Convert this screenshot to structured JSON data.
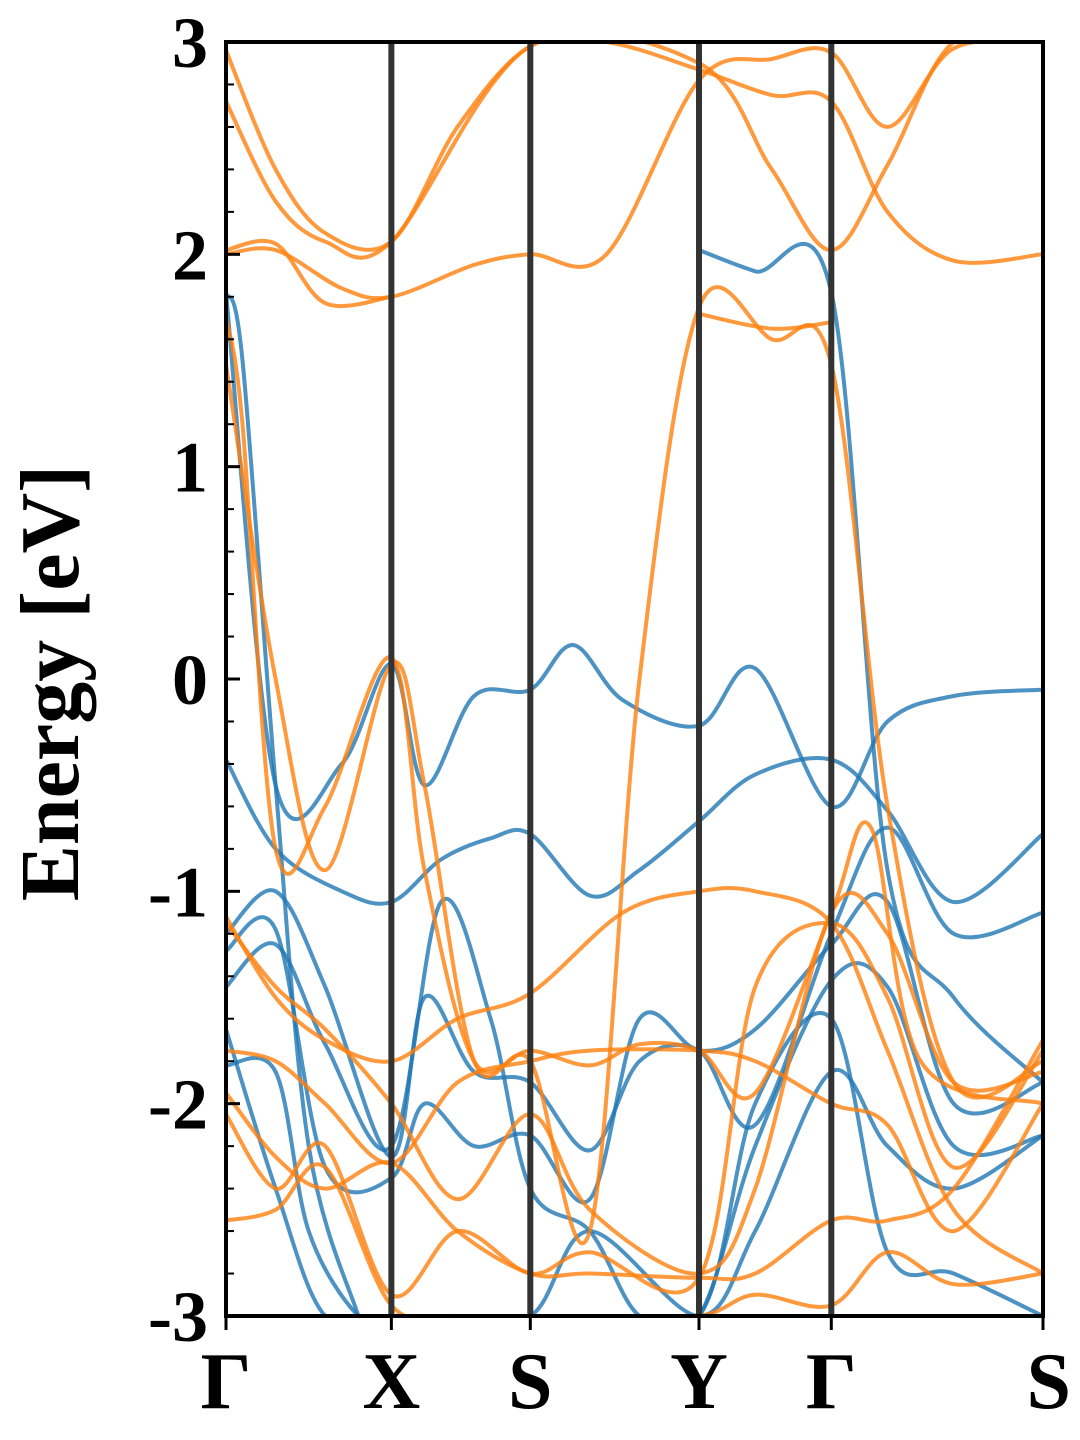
{
  "chart_data": {
    "type": "line",
    "title": "",
    "ylabel": "Energy [eV]",
    "xlabel": "",
    "ylim": [
      -3,
      3
    ],
    "yticks": [
      "-3",
      "-2",
      "-1",
      "0",
      "1",
      "2",
      "3"
    ],
    "kpath": {
      "labels": [
        "Γ",
        "X",
        "S",
        "Y",
        "Γ",
        "S"
      ],
      "positions": [
        0,
        1.0,
        1.84,
        2.86,
        3.66,
        4.94
      ]
    },
    "colors": {
      "spin_up": "#1f77b4",
      "spin_down": "#ff7f0e",
      "vline": "#333333"
    },
    "grid": false,
    "series": [
      {
        "spin": "up",
        "x": [
          0,
          0.3,
          0.7,
          1.0,
          1.2,
          1.5,
          1.84,
          2.1,
          2.4,
          2.86,
          3.2,
          3.66,
          4.0,
          4.4,
          4.94
        ],
        "y": [
          1.82,
          -0.5,
          -0.4,
          0.07,
          -0.5,
          -0.08,
          -0.05,
          0.16,
          -0.1,
          -0.22,
          0.05,
          -0.6,
          -0.2,
          -0.08,
          -0.05
        ]
      },
      {
        "spin": "up",
        "x": [
          0,
          0.3,
          0.7,
          1.0,
          1.3,
          1.6,
          1.84,
          2.2,
          2.5,
          2.86,
          3.2,
          3.66,
          4.0,
          4.4,
          4.94
        ],
        "y": [
          -0.38,
          -0.8,
          -1.0,
          -1.05,
          -0.85,
          -0.75,
          -0.73,
          -1.02,
          -0.9,
          -0.67,
          -0.45,
          -0.38,
          -0.62,
          -1.05,
          -0.73
        ]
      },
      {
        "spin": "up",
        "x": [
          0,
          0.3,
          0.6,
          1.0,
          1.2,
          1.5,
          1.84,
          2.2,
          2.5,
          2.86,
          3.2,
          3.66,
          4.0,
          4.4,
          4.94
        ],
        "y": [
          -1.2,
          -1.0,
          -1.45,
          -2.25,
          -1.5,
          -1.85,
          -1.9,
          -2.22,
          -1.8,
          -1.75,
          -2.1,
          -1.2,
          -0.7,
          -1.2,
          -1.1
        ]
      },
      {
        "spin": "up",
        "x": [
          0,
          0.3,
          0.6,
          1.0,
          1.2,
          1.5,
          1.84,
          2.2,
          2.5,
          2.86,
          3.2,
          3.66,
          4.0,
          4.4,
          4.94
        ],
        "y": [
          -1.28,
          -1.18,
          -2.3,
          -2.35,
          -2.0,
          -2.2,
          -2.15,
          -2.45,
          -1.6,
          -1.75,
          -1.65,
          -1.25,
          -1.05,
          -2.0,
          -1.9
        ]
      },
      {
        "spin": "up",
        "x": [
          0,
          0.3,
          0.6,
          1.0,
          1.3,
          1.6,
          1.84,
          2.2,
          2.5,
          2.86,
          3.2,
          3.66,
          4.0,
          4.4,
          4.94
        ],
        "y": [
          -1.45,
          -1.25,
          -1.72,
          -2.2,
          -1.05,
          -1.6,
          -2.4,
          -2.6,
          -3.0,
          -3.0,
          -2.2,
          -1.42,
          -1.45,
          -2.2,
          -2.15
        ]
      },
      {
        "spin": "up",
        "x": [
          0,
          0.3,
          0.6,
          1.0,
          1.3,
          1.84,
          2.2,
          2.86,
          3.2,
          3.66,
          4.0,
          4.4,
          4.94
        ],
        "y": [
          -1.65,
          -2.4,
          -3.0,
          -3.0,
          -3.0,
          -3.0,
          -2.6,
          -3.0,
          -2.6,
          -1.85,
          -2.2,
          -2.4,
          -2.15
        ]
      },
      {
        "spin": "up",
        "x": [
          0,
          0.3,
          0.5,
          0.8,
          1.0,
          1.4,
          1.84,
          2.2,
          2.86,
          3.2,
          3.66,
          4.0,
          4.4,
          4.94
        ],
        "y": [
          -1.82,
          -1.85,
          -2.6,
          -3.0,
          -3.0,
          -3.0,
          -3.0,
          -3.0,
          -3.0,
          -2.0,
          -1.6,
          -2.7,
          -2.8,
          -3.0
        ]
      },
      {
        "spin": "up",
        "x": [
          2.86,
          3.2,
          3.66,
          4.0,
          4.4,
          4.94
        ],
        "y": [
          2.02,
          1.92,
          1.82,
          -0.9,
          -1.5,
          -1.9
        ]
      },
      {
        "spin": "up",
        "x": [
          0,
          0.1,
          0.3,
          0.5,
          0.8
        ],
        "y": [
          1.82,
          1.5,
          -0.5,
          -2.2,
          -3.0
        ]
      },
      {
        "spin": "down",
        "x": [
          0,
          0.3,
          0.7,
          1.0,
          1.5,
          1.84,
          2.3,
          2.86,
          3.3,
          3.66,
          4.0,
          4.4,
          4.94
        ],
        "y": [
          2.0,
          2.02,
          1.84,
          1.8,
          1.95,
          2.0,
          2.0,
          2.82,
          2.92,
          2.95,
          2.6,
          2.97,
          3.0
        ]
      },
      {
        "spin": "down",
        "x": [
          0,
          0.3,
          0.6,
          1.0,
          1.4,
          1.84,
          2.3,
          2.86,
          3.3,
          3.66,
          4.0,
          4.4,
          4.94
        ],
        "y": [
          2.96,
          2.4,
          2.1,
          2.06,
          2.6,
          2.98,
          3.0,
          2.87,
          2.75,
          2.72,
          2.2,
          1.97,
          2.0
        ]
      },
      {
        "spin": "down",
        "x": [
          0,
          0.3,
          0.6,
          1.0,
          1.84,
          2.86,
          3.3,
          3.66,
          4.0,
          4.4,
          4.94
        ],
        "y": [
          2.72,
          2.25,
          2.06,
          2.06,
          2.98,
          2.9,
          2.4,
          2.02,
          2.42,
          3.0,
          3.0
        ]
      },
      {
        "spin": "down",
        "x": [
          0,
          0.3,
          0.6,
          1.0
        ],
        "y": [
          2.02,
          2.05,
          1.77,
          1.8
        ]
      },
      {
        "spin": "down",
        "x": [
          0,
          0.1,
          0.3,
          0.6,
          1.0,
          1.2,
          1.5,
          1.84,
          2.2,
          2.5,
          2.86,
          3.2,
          3.66,
          3.9,
          4.2,
          4.94
        ],
        "y": [
          1.7,
          1.2,
          -0.8,
          -0.6,
          0.1,
          -0.9,
          -1.8,
          -1.75,
          -1.82,
          -1.72,
          -1.75,
          -1.95,
          -1.1,
          -0.7,
          -1.8,
          -2.0
        ]
      },
      {
        "spin": "down",
        "x": [
          0,
          0.3,
          0.6,
          1.0,
          1.2,
          1.5,
          1.84,
          2.2,
          2.5,
          2.86,
          3.3,
          3.66,
          4.0,
          4.4,
          4.94
        ],
        "y": [
          1.48,
          0.0,
          -0.9,
          0.07,
          -0.5,
          -1.8,
          -1.8,
          -2.6,
          0.0,
          1.75,
          1.6,
          1.48,
          -0.6,
          -1.9,
          -1.8
        ]
      },
      {
        "spin": "down",
        "x": [
          2.86,
          3.3,
          3.66
        ],
        "y": [
          1.72,
          1.65,
          1.68
        ]
      },
      {
        "spin": "down",
        "x": [
          0,
          0.3,
          0.6,
          1.0,
          1.4,
          1.84,
          2.4,
          2.86,
          3.2,
          3.66,
          4.0,
          4.4,
          4.94
        ],
        "y": [
          -1.12,
          -1.5,
          -1.7,
          -1.8,
          -1.6,
          -1.48,
          -1.1,
          -1.0,
          -1.0,
          -1.15,
          -1.75,
          -2.5,
          -2.8
        ]
      },
      {
        "spin": "down",
        "x": [
          0,
          0.3,
          0.6,
          1.0,
          1.4,
          1.84,
          2.2,
          2.86,
          3.2,
          3.66,
          4.0,
          4.4,
          4.94
        ],
        "y": [
          -1.15,
          -1.45,
          -1.65,
          -2.0,
          -2.45,
          -2.05,
          -2.5,
          -2.8,
          -2.4,
          -1.1,
          -1.2,
          -1.9,
          -1.85
        ]
      },
      {
        "spin": "down",
        "x": [
          0,
          0.3,
          0.6,
          1.0,
          1.4,
          1.84,
          2.2,
          2.86,
          3.2,
          3.66,
          4.0,
          4.4,
          4.94
        ],
        "y": [
          -1.75,
          -1.8,
          -2.0,
          -2.28,
          -1.9,
          -1.8,
          -1.75,
          -1.75,
          -1.8,
          -2.0,
          -2.1,
          -2.6,
          -2.0
        ]
      },
      {
        "spin": "down",
        "x": [
          0,
          0.3,
          0.6,
          1.0,
          1.4,
          1.84,
          2.2,
          2.86,
          3.2,
          3.66,
          4.0,
          4.4,
          4.94
        ],
        "y": [
          -1.95,
          -2.25,
          -2.4,
          -2.28,
          -2.6,
          -2.8,
          -2.8,
          -2.82,
          -2.8,
          -2.55,
          -2.55,
          -2.4,
          -1.7
        ]
      },
      {
        "spin": "down",
        "x": [
          0,
          0.3,
          0.6,
          1.0,
          1.4,
          1.84,
          2.2,
          2.86,
          3.2,
          3.66,
          4.0,
          4.4,
          4.94
        ],
        "y": [
          -2.05,
          -2.4,
          -2.2,
          -2.9,
          -2.6,
          -2.8,
          -2.7,
          -2.82,
          -1.45,
          -1.15,
          -1.5,
          -2.3,
          -1.75
        ]
      },
      {
        "spin": "down",
        "x": [
          0,
          0.3,
          0.6,
          1.0,
          1.4,
          1.84,
          2.2,
          2.86,
          3.2,
          3.66,
          4.0,
          4.4,
          4.94
        ],
        "y": [
          -2.55,
          -2.5,
          -2.3,
          -2.95,
          -3.0,
          -3.0,
          -3.0,
          -3.0,
          -2.9,
          -2.95,
          -2.7,
          -2.85,
          -2.8
        ]
      }
    ]
  }
}
